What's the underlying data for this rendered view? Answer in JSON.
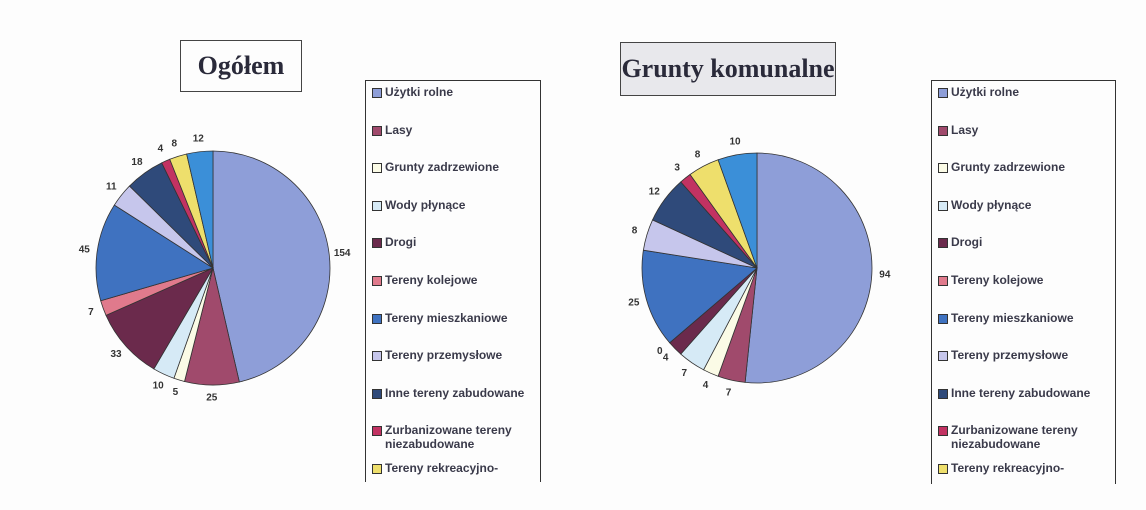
{
  "chart_data": [
    {
      "type": "pie",
      "title": "Ogółem",
      "categories": [
        "Użytki rolne",
        "Lasy",
        "Grunty zadrzewione",
        "Wody płynące",
        "Drogi",
        "Tereny kolejowe",
        "Tereny mieszkaniowe",
        "Tereny przemysłowe",
        "Inne tereny zabudowane",
        "Zurbanizowane tereny niezabudowane",
        "Tereny rekreacyjno-",
        null
      ],
      "values": [
        154,
        25,
        5,
        10,
        33,
        7,
        45,
        11,
        18,
        4,
        8,
        12
      ],
      "colors": [
        "#8e9ed8",
        "#a04a6c",
        "#fbfbe6",
        "#d6eaf6",
        "#6b2a4c",
        "#e07a8c",
        "#3f72c0",
        "#c6c6ec",
        "#2f4a7a",
        "#c23262",
        "#eedf6c",
        "#3b8fd8"
      ]
    },
    {
      "type": "pie",
      "title": "Grunty komunalne",
      "categories": [
        "Użytki rolne",
        "Lasy",
        "Grunty zadrzewione",
        "Wody płynące",
        "Drogi",
        "Tereny kolejowe",
        "Tereny mieszkaniowe",
        "Tereny przemysłowe",
        "Inne tereny zabudowane",
        "Zurbanizowane tereny niezabudowane",
        "Tereny rekreacyjno-",
        null
      ],
      "values": [
        94,
        7,
        4,
        7,
        4,
        0,
        25,
        8,
        12,
        3,
        8,
        10
      ],
      "colors": [
        "#8e9ed8",
        "#a04a6c",
        "#fbfbe6",
        "#d6eaf6",
        "#6b2a4c",
        "#e07a8c",
        "#3f72c0",
        "#c6c6ec",
        "#2f4a7a",
        "#c23262",
        "#eedf6c",
        "#3b8fd8"
      ]
    }
  ]
}
